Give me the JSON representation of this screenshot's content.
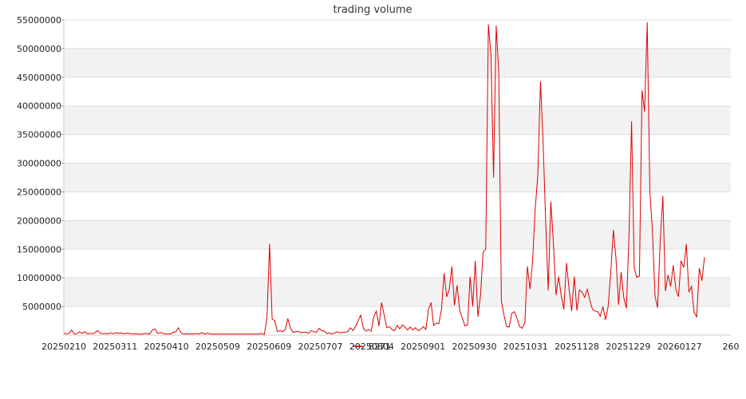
{
  "chart_data": {
    "type": "line",
    "title": "trading volume",
    "xlabel": "",
    "ylabel": "",
    "ylim": [
      0,
      55000000
    ],
    "y_ticks": [
      5000000,
      10000000,
      15000000,
      20000000,
      25000000,
      30000000,
      35000000,
      40000000,
      45000000,
      50000000,
      55000000
    ],
    "y_tick_labels": [
      "5000000",
      "10000000",
      "15000000",
      "20000000",
      "25000000",
      "30000000",
      "35000000",
      "40000000",
      "45000000",
      "50000000",
      "55000000"
    ],
    "x_tick_labels": [
      "20250210",
      "20250311",
      "20250410",
      "20250509",
      "20250609",
      "20250707",
      "20250804",
      "20250901",
      "20250930",
      "20251031",
      "20251128",
      "20251229",
      "20260127",
      "260"
    ],
    "grid": "horizontal bands",
    "legend_position": "bottom-center",
    "series": [
      {
        "name": "8271",
        "color": "#dd0000",
        "values": [
          300000,
          250000,
          300000,
          900000,
          200000,
          250000,
          600000,
          300000,
          600000,
          250000,
          300000,
          250000,
          450000,
          800000,
          350000,
          250000,
          300000,
          250000,
          400000,
          250000,
          450000,
          300000,
          400000,
          250000,
          350000,
          300000,
          250000,
          200000,
          250000,
          200000,
          150000,
          300000,
          250000,
          200000,
          900000,
          1100000,
          300000,
          450000,
          300000,
          200000,
          250000,
          200000,
          500000,
          600000,
          1300000,
          400000,
          200000,
          250000,
          200000,
          250000,
          200000,
          300000,
          200000,
          450000,
          200000,
          350000,
          250000,
          200000,
          200000,
          200000,
          200000,
          200000,
          200000,
          200000,
          200000,
          200000,
          200000,
          200000,
          200000,
          200000,
          200000,
          200000,
          200000,
          200000,
          200000,
          200000,
          300000,
          100000,
          3000000,
          15900000,
          2800000,
          2500000,
          600000,
          800000,
          600000,
          1000000,
          2900000,
          1200000,
          500000,
          600000,
          700000,
          400000,
          500000,
          500000,
          300000,
          800000,
          600000,
          500000,
          1200000,
          800000,
          700000,
          300000,
          400000,
          200000,
          400000,
          600000,
          400000,
          450000,
          500000,
          600000,
          1300000,
          800000,
          1500000,
          2500000,
          3500000,
          1200000,
          700000,
          1000000,
          700000,
          3200000,
          4200000,
          1600000,
          5700000,
          3500000,
          1300000,
          1500000,
          1000000,
          800000,
          1700000,
          1100000,
          1800000,
          1400000,
          900000,
          1400000,
          900000,
          1300000,
          800000,
          1000000,
          1500000,
          1000000,
          4500000,
          5700000,
          1700000,
          2100000,
          2000000,
          4500000,
          10800000,
          6700000,
          8000000,
          12000000,
          5200000,
          8700000,
          4300000,
          3000000,
          1600000,
          1800000,
          10200000,
          5000000,
          13000000,
          3200000,
          7000000,
          14500000,
          15000000,
          54200000,
          49000000,
          27500000,
          54000000,
          46000000,
          6000000,
          3500000,
          1500000,
          1400000,
          3800000,
          4100000,
          3000000,
          1500000,
          1200000,
          2200000,
          12000000,
          8000000,
          13000000,
          22000000,
          28000000,
          44300000,
          34000000,
          20000000,
          7800000,
          23300000,
          15800000,
          7000000,
          10200000,
          6800000,
          4500000,
          12600000,
          8000000,
          4200000,
          10200000,
          4300000,
          7900000,
          7500000,
          6600000,
          8000000,
          6000000,
          4500000,
          4200000,
          4100000,
          3300000,
          5000000,
          2700000,
          5000000,
          11000000,
          18400000,
          13500000,
          5300000,
          11000000,
          6500000,
          4700000,
          17000000,
          37300000,
          11700000,
          10100000,
          10300000,
          42700000,
          39000000,
          54600000,
          25000000,
          18300000,
          6800000,
          4800000,
          16500000,
          24300000,
          7700000,
          10500000,
          8500000,
          12200000,
          8000000,
          6700000,
          13000000,
          11800000,
          15900000,
          7500000,
          8500000,
          4000000,
          3200000,
          11700000,
          9500000,
          13600000
        ]
      }
    ]
  }
}
